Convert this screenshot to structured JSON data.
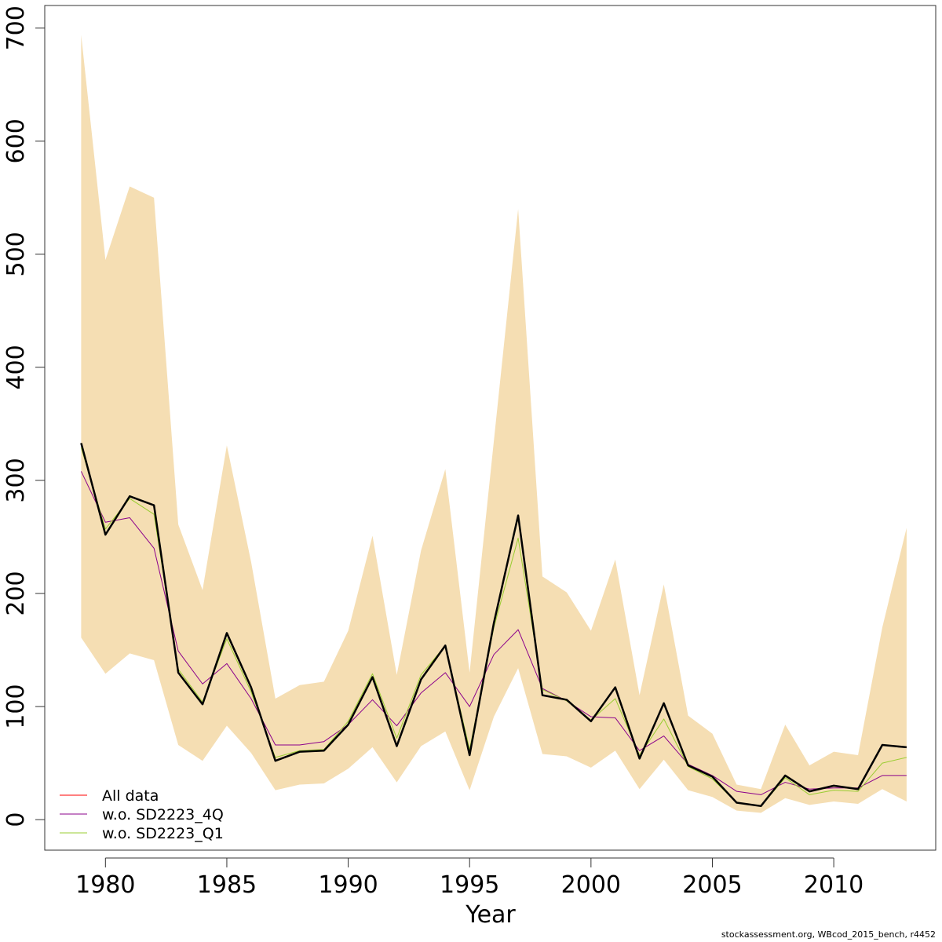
{
  "chart_data": {
    "type": "line",
    "title": "",
    "xlabel": "Year",
    "ylabel": "",
    "xlim": [
      1977.5,
      2014.2
    ],
    "ylim": [
      -27,
      720
    ],
    "x_ticks": [
      1980,
      1985,
      1990,
      1995,
      2000,
      2005,
      2010
    ],
    "y_ticks": [
      0,
      100,
      200,
      300,
      400,
      500,
      600,
      700
    ],
    "legend_position": "bottom-left",
    "grid": false,
    "x": [
      1979,
      1980,
      1981,
      1982,
      1983,
      1984,
      1985,
      1986,
      1987,
      1988,
      1989,
      1990,
      1991,
      1992,
      1993,
      1994,
      1995,
      1996,
      1997,
      1998,
      1999,
      2000,
      2001,
      2002,
      2003,
      2004,
      2005,
      2006,
      2007,
      2008,
      2009,
      2010,
      2011,
      2012,
      2013
    ],
    "confidence_band": {
      "color": "#F5DEB3",
      "lower": [
        161,
        129,
        147,
        141,
        66,
        52,
        83,
        59,
        26,
        31,
        32,
        45,
        64,
        33,
        65,
        78,
        26,
        91,
        134,
        58,
        56,
        46,
        61,
        27,
        53,
        26,
        20,
        8,
        6,
        19,
        13,
        16,
        14,
        27,
        16
      ],
      "upper": [
        694,
        495,
        560,
        550,
        261,
        203,
        331,
        228,
        107,
        119,
        122,
        167,
        251,
        128,
        238,
        310,
        130,
        335,
        540,
        215,
        201,
        167,
        230,
        110,
        208,
        92,
        76,
        31,
        27,
        84,
        48,
        60,
        57,
        170,
        258
      ]
    },
    "estimate": {
      "color": "#000000",
      "values": [
        333,
        252,
        286,
        278,
        130,
        102,
        165,
        117,
        52,
        60,
        61,
        84,
        126,
        65,
        124,
        154,
        57,
        174,
        269,
        110,
        106,
        87,
        117,
        54,
        103,
        48,
        38,
        15,
        12,
        39,
        25,
        30,
        27,
        66,
        64
      ]
    },
    "series": [
      {
        "name": "All data",
        "color": "#FF0000",
        "values": [
          333,
          252,
          286,
          278,
          130,
          102,
          165,
          117,
          52,
          60,
          61,
          84,
          126,
          65,
          124,
          154,
          57,
          174,
          269,
          110,
          106,
          87,
          117,
          54,
          103,
          48,
          38,
          15,
          12,
          39,
          25,
          30,
          27,
          66,
          64
        ]
      },
      {
        "name": "w.o. SD2223_4Q",
        "color": "#8B008B",
        "values": [
          308,
          263,
          267,
          240,
          149,
          120,
          138,
          107,
          66,
          66,
          69,
          84,
          106,
          83,
          112,
          130,
          100,
          146,
          168,
          116,
          105,
          91,
          90,
          61,
          74,
          49,
          39,
          25,
          22,
          33,
          27,
          28,
          28,
          39,
          39
        ]
      },
      {
        "name": "w.o. SD2223_Q1",
        "color": "#9ACD32",
        "values": [
          329,
          257,
          284,
          270,
          133,
          104,
          160,
          113,
          55,
          61,
          62,
          87,
          129,
          72,
          128,
          154,
          62,
          170,
          249,
          115,
          105,
          88,
          107,
          57,
          89,
          47,
          36,
          15,
          12,
          37,
          22,
          26,
          25,
          50,
          55
        ]
      }
    ]
  },
  "footer": {
    "note": "stockassessment.org, WBcod_2015_bench, r4452"
  }
}
